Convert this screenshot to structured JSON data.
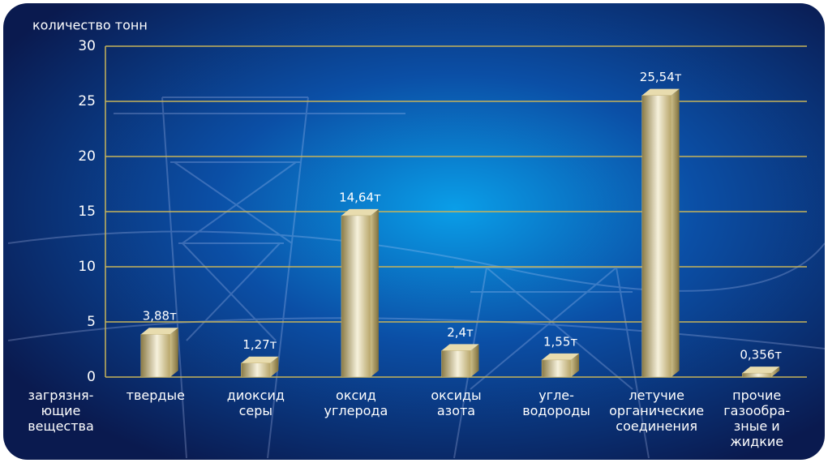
{
  "chart_data": {
    "type": "bar",
    "y_label": "количество тонн",
    "x_label": "загрязня-\nющие\nвещества",
    "categories": [
      "твердые",
      "диоксид\nсеры",
      "оксид\nуглерода",
      "оксиды\nазота",
      "угле-\nводороды",
      "летучие\nорганические\nсоединения",
      "прочие\nгазообра-\nзные и\nжидкие"
    ],
    "values": [
      3.88,
      1.27,
      14.64,
      2.4,
      1.55,
      25.54,
      0.356
    ],
    "value_labels": [
      "3,88т",
      "1,27т",
      "14,64т",
      "2,4т",
      "1,55т",
      "25,54т",
      "0,356т"
    ],
    "color": "#c9b77a",
    "ylim": [
      0,
      30
    ],
    "yticks": [
      0,
      5,
      10,
      15,
      20,
      25,
      30
    ],
    "grid": true
  }
}
